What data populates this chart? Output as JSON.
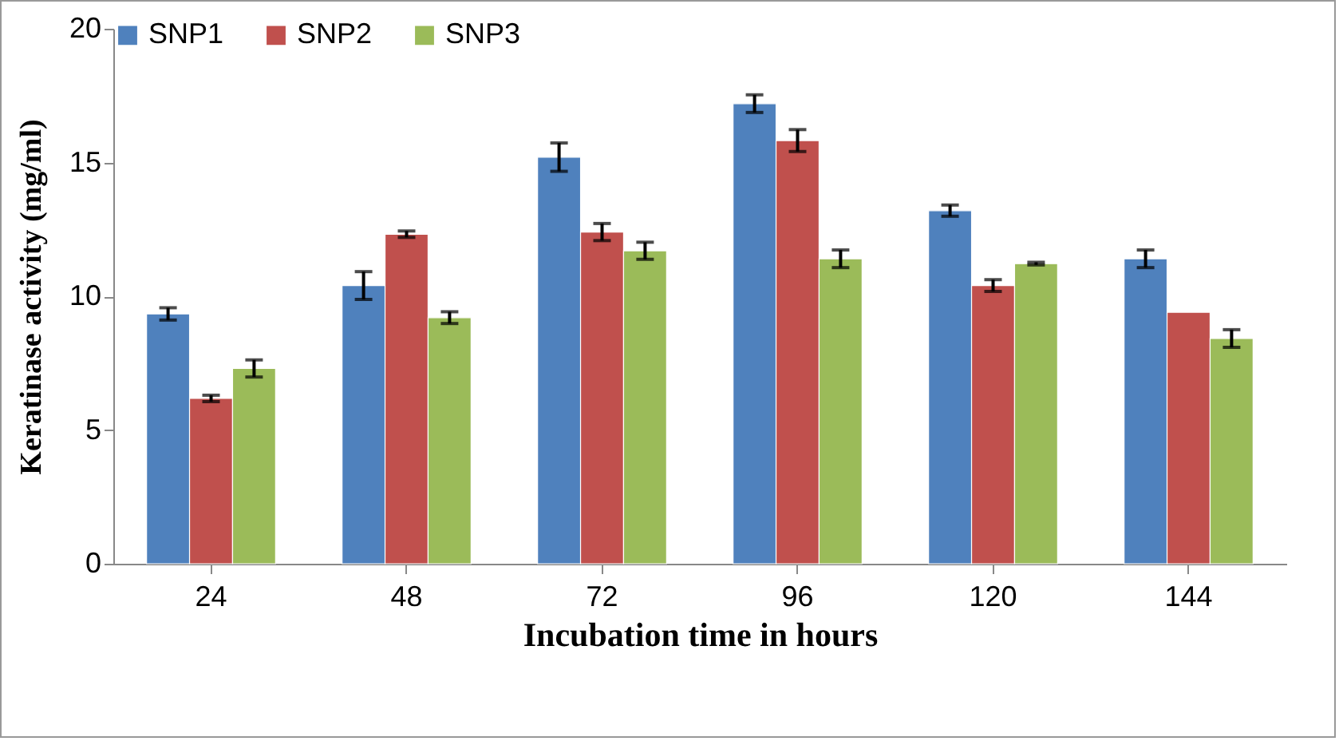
{
  "chart_data": {
    "type": "bar",
    "xlabel": "Incubation time in hours",
    "ylabel": "Keratinase activity  (mg/ml)",
    "categories": [
      "24",
      "48",
      "72",
      "96",
      "120",
      "144"
    ],
    "series": [
      {
        "name": "SNP1",
        "color": "#4f81bd",
        "values": [
          9.34,
          10.4,
          15.2,
          17.2,
          13.2,
          11.4
        ],
        "errors": [
          0.23,
          0.52,
          0.53,
          0.33,
          0.21,
          0.33
        ]
      },
      {
        "name": "SNP2",
        "color": "#c0504d",
        "values": [
          6.18,
          12.32,
          12.4,
          15.82,
          10.4,
          9.4
        ],
        "errors": [
          0.12,
          0.12,
          0.32,
          0.41,
          0.22,
          null
        ]
      },
      {
        "name": "SNP3",
        "color": "#9bbb59",
        "values": [
          7.3,
          9.2,
          11.7,
          11.4,
          11.22,
          8.42
        ],
        "errors": [
          0.32,
          0.22,
          0.32,
          0.33,
          0.05,
          0.33
        ]
      }
    ],
    "ylim": [
      0,
      20
    ],
    "yticks": [
      0,
      5,
      10,
      15,
      20
    ],
    "grid": false,
    "legend": "top"
  }
}
